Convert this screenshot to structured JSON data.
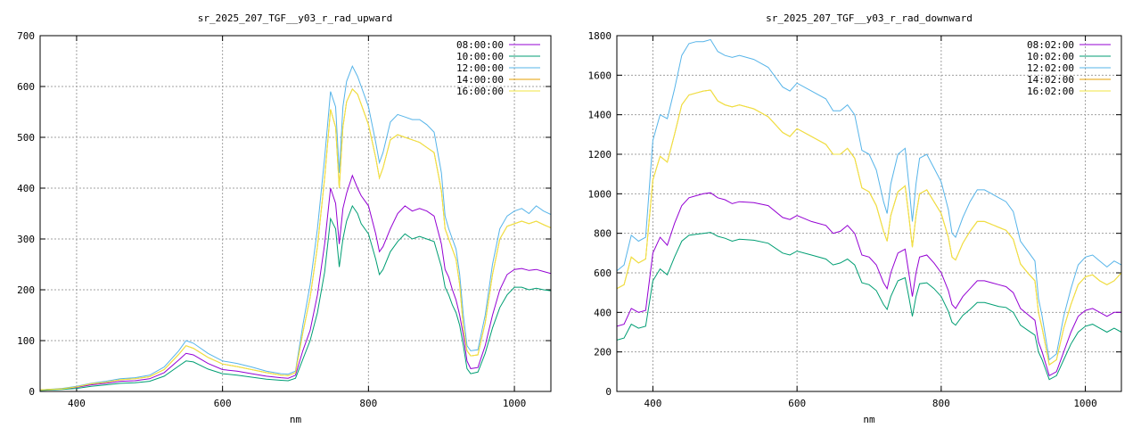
{
  "chart_data": [
    {
      "type": "line",
      "title": "sr_2025_207_TGF__y03_r_rad_upward",
      "xlabel": "nm",
      "ylabel": "",
      "xlim": [
        350,
        1050
      ],
      "ylim": [
        0,
        700
      ],
      "xticks": [
        400,
        600,
        800,
        1000
      ],
      "yticks": [
        0,
        100,
        200,
        300,
        400,
        500,
        600,
        700
      ],
      "grid": true,
      "legend_position": "top-right",
      "x": [
        350,
        380,
        400,
        420,
        440,
        460,
        480,
        500,
        520,
        540,
        550,
        560,
        580,
        600,
        620,
        640,
        660,
        680,
        690,
        700,
        710,
        720,
        730,
        740,
        748,
        755,
        760,
        765,
        770,
        778,
        785,
        790,
        800,
        810,
        815,
        820,
        830,
        840,
        850,
        860,
        870,
        880,
        890,
        900,
        905,
        910,
        915,
        920,
        925,
        930,
        935,
        940,
        950,
        960,
        970,
        980,
        990,
        1000,
        1010,
        1020,
        1030,
        1040,
        1050
      ],
      "series": [
        {
          "name": "08:00:00",
          "color": "#9400d3",
          "values": [
            3,
            5,
            8,
            13,
            16,
            20,
            21,
            25,
            37,
            62,
            75,
            72,
            55,
            43,
            40,
            35,
            30,
            27,
            26,
            32,
            80,
            120,
            190,
            290,
            400,
            370,
            290,
            360,
            390,
            425,
            400,
            385,
            365,
            310,
            275,
            285,
            320,
            350,
            365,
            355,
            360,
            355,
            345,
            290,
            240,
            225,
            200,
            180,
            150,
            110,
            60,
            45,
            47,
            90,
            150,
            200,
            230,
            240,
            242,
            238,
            240,
            236,
            232
          ]
        },
        {
          "name": "10:00:00",
          "color": "#009e73",
          "values": [
            2,
            4,
            6,
            10,
            13,
            16,
            17,
            20,
            30,
            50,
            60,
            58,
            44,
            35,
            32,
            28,
            24,
            22,
            21,
            26,
            63,
            100,
            155,
            235,
            340,
            320,
            245,
            300,
            335,
            365,
            350,
            330,
            310,
            260,
            230,
            240,
            275,
            295,
            310,
            300,
            305,
            300,
            295,
            245,
            205,
            190,
            170,
            155,
            130,
            90,
            45,
            35,
            38,
            75,
            125,
            165,
            190,
            205,
            205,
            200,
            203,
            200,
            198
          ]
        },
        {
          "name": "12:00:00",
          "color": "#56b4e9",
          "values": [
            3,
            6,
            10,
            16,
            20,
            25,
            27,
            32,
            48,
            80,
            100,
            95,
            75,
            60,
            55,
            48,
            40,
            35,
            34,
            40,
            130,
            210,
            320,
            460,
            590,
            560,
            430,
            560,
            610,
            640,
            620,
            600,
            560,
            490,
            450,
            470,
            530,
            545,
            540,
            535,
            535,
            525,
            510,
            430,
            345,
            320,
            300,
            280,
            230,
            150,
            90,
            80,
            82,
            150,
            250,
            320,
            345,
            355,
            360,
            350,
            365,
            355,
            348
          ]
        },
        {
          "name": "14:00:00",
          "color": "#e69f00",
          "values": [
            3,
            5,
            9,
            15,
            18,
            23,
            25,
            29,
            43,
            73,
            90,
            85,
            67,
            54,
            49,
            43,
            37,
            32,
            31,
            37,
            115,
            185,
            285,
            420,
            555,
            520,
            400,
            520,
            570,
            595,
            585,
            565,
            525,
            460,
            420,
            440,
            495,
            505,
            500,
            495,
            490,
            480,
            470,
            395,
            320,
            300,
            280,
            260,
            210,
            125,
            80,
            70,
            72,
            135,
            230,
            300,
            325,
            330,
            335,
            330,
            335,
            328,
            322
          ]
        },
        {
          "name": "16:00:00",
          "color": "#f0e442",
          "values": [
            3,
            5,
            9,
            15,
            18,
            23,
            25,
            29,
            43,
            73,
            90,
            85,
            67,
            54,
            49,
            43,
            37,
            32,
            31,
            37,
            115,
            185,
            285,
            420,
            555,
            520,
            400,
            520,
            570,
            595,
            585,
            565,
            525,
            460,
            420,
            440,
            495,
            505,
            500,
            495,
            490,
            480,
            470,
            395,
            320,
            300,
            280,
            260,
            210,
            125,
            80,
            70,
            72,
            135,
            230,
            300,
            325,
            330,
            335,
            330,
            335,
            328,
            322
          ]
        }
      ]
    },
    {
      "type": "line",
      "title": "sr_2025_207_TGF__y03_r_rad_downward",
      "xlabel": "nm",
      "ylabel": "",
      "xlim": [
        350,
        1050
      ],
      "ylim": [
        0,
        1800
      ],
      "xticks": [
        400,
        600,
        800,
        1000
      ],
      "yticks": [
        0,
        200,
        400,
        600,
        800,
        1000,
        1200,
        1400,
        1600,
        1800
      ],
      "grid": true,
      "legend_position": "top-right",
      "x": [
        350,
        360,
        370,
        380,
        390,
        400,
        410,
        420,
        430,
        440,
        450,
        460,
        470,
        480,
        490,
        500,
        510,
        520,
        540,
        560,
        580,
        590,
        600,
        620,
        640,
        650,
        660,
        670,
        680,
        690,
        700,
        710,
        720,
        725,
        730,
        740,
        750,
        755,
        760,
        765,
        770,
        780,
        790,
        800,
        810,
        815,
        820,
        830,
        840,
        850,
        860,
        870,
        880,
        890,
        900,
        910,
        920,
        930,
        935,
        940,
        950,
        960,
        970,
        980,
        990,
        1000,
        1010,
        1020,
        1030,
        1040,
        1050
      ],
      "series": [
        {
          "name": "08:02:00",
          "color": "#9400d3",
          "values": [
            330,
            340,
            420,
            400,
            410,
            700,
            780,
            740,
            850,
            940,
            980,
            990,
            1000,
            1005,
            980,
            970,
            950,
            960,
            955,
            940,
            880,
            870,
            890,
            860,
            840,
            800,
            810,
            840,
            800,
            690,
            680,
            640,
            550,
            520,
            600,
            700,
            720,
            600,
            480,
            600,
            680,
            690,
            650,
            600,
            510,
            440,
            420,
            480,
            520,
            560,
            560,
            550,
            540,
            530,
            500,
            420,
            390,
            360,
            250,
            200,
            80,
            100,
            200,
            300,
            380,
            410,
            420,
            400,
            380,
            400,
            400
          ]
        },
        {
          "name": "10:02:00",
          "color": "#009e73",
          "values": [
            260,
            270,
            340,
            320,
            330,
            560,
            620,
            590,
            680,
            760,
            790,
            795,
            800,
            805,
            785,
            775,
            760,
            770,
            765,
            750,
            700,
            690,
            710,
            690,
            670,
            640,
            650,
            670,
            640,
            550,
            540,
            510,
            440,
            415,
            480,
            560,
            575,
            480,
            380,
            480,
            545,
            550,
            520,
            480,
            405,
            350,
            335,
            385,
            415,
            450,
            450,
            440,
            430,
            425,
            400,
            335,
            310,
            285,
            200,
            160,
            60,
            80,
            160,
            240,
            300,
            330,
            340,
            320,
            300,
            320,
            300
          ]
        },
        {
          "name": "12:02:00",
          "color": "#56b4e9",
          "values": [
            610,
            640,
            790,
            760,
            780,
            1270,
            1400,
            1380,
            1530,
            1700,
            1760,
            1770,
            1770,
            1780,
            1720,
            1700,
            1690,
            1700,
            1680,
            1640,
            1540,
            1520,
            1560,
            1520,
            1480,
            1420,
            1420,
            1450,
            1400,
            1220,
            1200,
            1120,
            960,
            900,
            1050,
            1200,
            1230,
            1050,
            860,
            1050,
            1180,
            1200,
            1130,
            1060,
            920,
            800,
            780,
            880,
            960,
            1020,
            1020,
            1000,
            980,
            960,
            910,
            760,
            710,
            660,
            470,
            380,
            160,
            190,
            380,
            520,
            640,
            680,
            690,
            660,
            630,
            660,
            640
          ]
        },
        {
          "name": "14:02:00",
          "color": "#e69f00",
          "values": [
            520,
            540,
            680,
            650,
            670,
            1070,
            1190,
            1160,
            1300,
            1450,
            1500,
            1510,
            1520,
            1525,
            1470,
            1450,
            1440,
            1450,
            1430,
            1390,
            1310,
            1290,
            1330,
            1290,
            1250,
            1200,
            1200,
            1230,
            1180,
            1030,
            1010,
            940,
            810,
            760,
            890,
            1010,
            1040,
            890,
            730,
            890,
            1000,
            1020,
            960,
            900,
            780,
            680,
            665,
            750,
            810,
            860,
            860,
            845,
            830,
            815,
            770,
            645,
            600,
            560,
            400,
            320,
            135,
            160,
            320,
            440,
            540,
            580,
            590,
            560,
            540,
            560,
            600
          ]
        },
        {
          "name": "16:02:00",
          "color": "#f0e442",
          "values": [
            520,
            540,
            680,
            650,
            670,
            1070,
            1190,
            1160,
            1300,
            1450,
            1500,
            1510,
            1520,
            1525,
            1470,
            1450,
            1440,
            1450,
            1430,
            1390,
            1310,
            1290,
            1330,
            1290,
            1250,
            1200,
            1200,
            1230,
            1180,
            1030,
            1010,
            940,
            810,
            760,
            890,
            1010,
            1040,
            890,
            730,
            890,
            1000,
            1020,
            960,
            900,
            780,
            680,
            665,
            750,
            810,
            860,
            860,
            845,
            830,
            815,
            770,
            645,
            600,
            560,
            400,
            320,
            135,
            160,
            320,
            440,
            540,
            580,
            590,
            560,
            540,
            560,
            600
          ]
        }
      ]
    }
  ]
}
